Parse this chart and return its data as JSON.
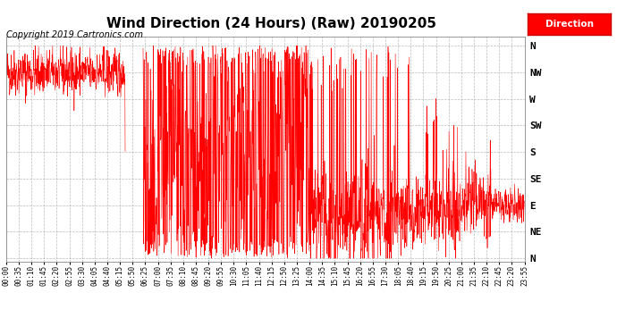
{
  "title": "Wind Direction (24 Hours) (Raw) 20190205",
  "copyright_text": "Copyright 2019 Cartronics.com",
  "legend_label": "Direction",
  "legend_bg": "#FF0000",
  "legend_text_color": "#FFFFFF",
  "line_color": "#FF0000",
  "bg_color": "#FFFFFF",
  "plot_bg_color": "#FFFFFF",
  "grid_color": "#AAAAAA",
  "title_fontsize": 11,
  "copyright_fontsize": 7,
  "y_labels": [
    "N",
    "NW",
    "W",
    "SW",
    "S",
    "SE",
    "E",
    "NE",
    "N"
  ],
  "y_ticks": [
    360,
    315,
    270,
    225,
    180,
    135,
    90,
    45,
    0
  ],
  "ylim": [
    -5,
    375
  ],
  "x_tick_labels": [
    "00:00",
    "00:35",
    "01:10",
    "01:45",
    "02:20",
    "02:55",
    "03:30",
    "04:05",
    "04:40",
    "05:15",
    "05:50",
    "06:25",
    "07:00",
    "07:35",
    "08:10",
    "08:45",
    "09:20",
    "09:55",
    "10:30",
    "11:05",
    "11:40",
    "12:15",
    "12:50",
    "13:25",
    "14:00",
    "14:35",
    "15:10",
    "15:45",
    "16:20",
    "16:55",
    "17:30",
    "18:05",
    "18:40",
    "19:15",
    "19:50",
    "20:25",
    "21:00",
    "21:35",
    "22:10",
    "22:45",
    "23:20",
    "23:55"
  ]
}
